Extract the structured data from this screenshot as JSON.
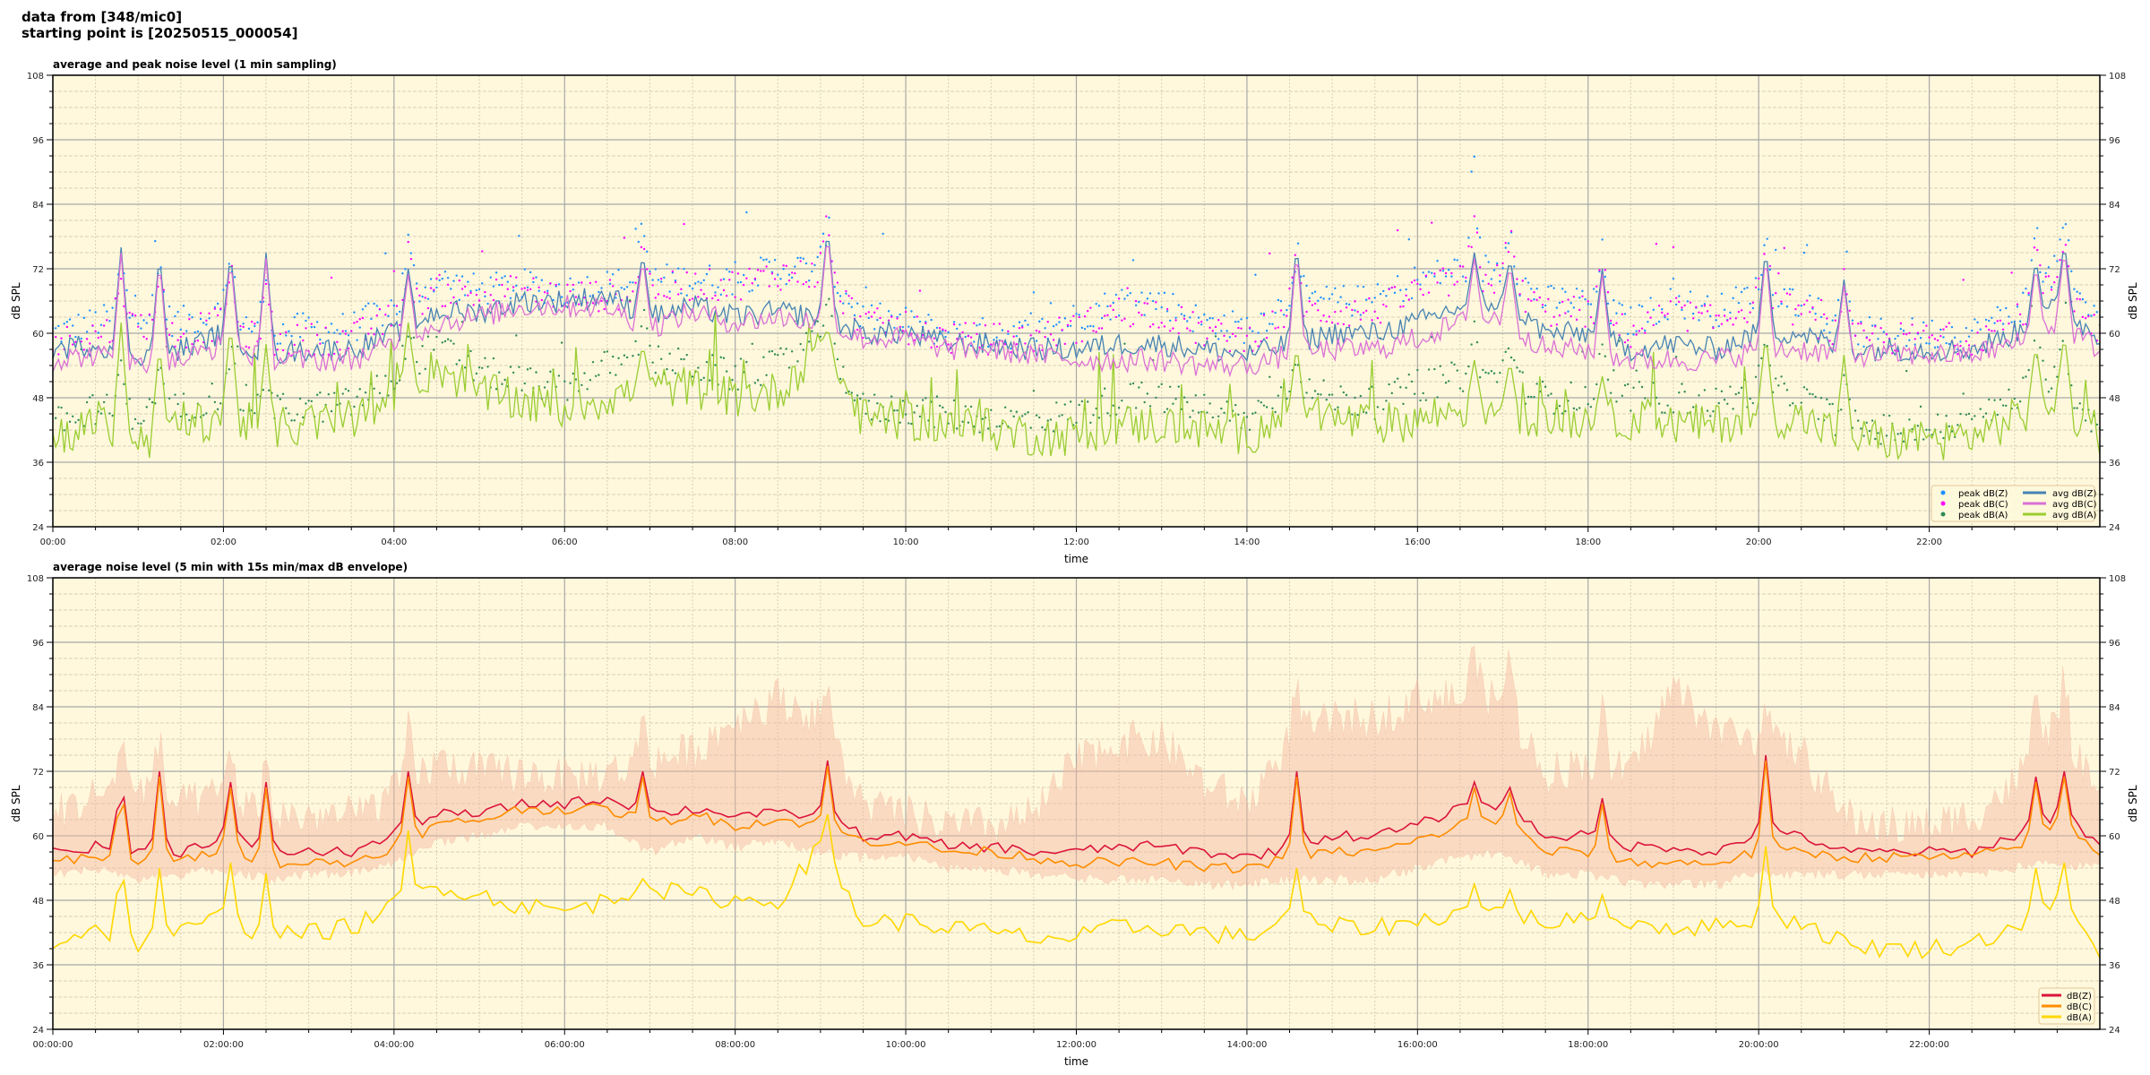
{
  "header": {
    "line1": "data from [348/mic0]",
    "line2": "starting point is [20250515_000054]"
  },
  "chart_data": [
    {
      "type": "line",
      "title": "average and peak noise level (1 min sampling)",
      "xlabel": "time",
      "ylabel": "dB SPL",
      "ylim": [
        24,
        108
      ],
      "yticks": [
        24,
        36,
        48,
        60,
        72,
        84,
        96,
        108
      ],
      "xlim_minutes": [
        0,
        1440
      ],
      "xticks": [
        "00:00",
        "02:00",
        "04:00",
        "06:00",
        "08:00",
        "10:00",
        "12:00",
        "14:00",
        "16:00",
        "18:00",
        "20:00",
        "22:00"
      ],
      "grid": true,
      "legend_placement": "bottom-right",
      "x_step_minutes": 30,
      "series": [
        {
          "name": "avg dB(Z)",
          "kind": "line",
          "color": "#4682b4",
          "values": [
            57,
            58,
            56,
            57,
            60,
            56,
            57,
            57,
            60,
            64,
            64,
            66,
            66,
            67,
            63,
            65,
            63,
            64,
            63,
            60,
            60,
            58,
            58,
            57,
            57,
            58,
            58,
            57,
            56,
            58,
            60,
            60,
            62,
            65,
            66,
            60,
            60,
            57,
            58,
            57,
            60,
            60,
            57,
            57,
            57,
            57,
            60,
            65,
            59
          ]
        },
        {
          "name": "avg dB(C)",
          "kind": "line",
          "color": "#da70d6",
          "values": [
            55,
            56,
            54,
            55,
            58,
            55,
            55,
            55,
            58,
            62,
            63,
            65,
            65,
            65,
            61,
            64,
            62,
            63,
            62,
            59,
            59,
            57,
            57,
            56,
            55,
            55,
            55,
            54,
            54,
            56,
            57,
            57,
            59,
            62,
            63,
            57,
            57,
            55,
            55,
            55,
            57,
            57,
            56,
            56,
            56,
            56,
            58,
            62,
            57
          ]
        },
        {
          "name": "avg dB(A)",
          "kind": "line",
          "color": "#9acd32",
          "values": [
            41,
            43,
            40,
            42,
            45,
            42,
            43,
            44,
            47,
            54,
            49,
            47,
            46,
            48,
            50,
            50,
            48,
            49,
            58,
            44,
            44,
            43,
            42,
            41,
            41,
            43,
            43,
            42,
            41,
            45,
            44,
            43,
            44,
            46,
            46,
            44,
            44,
            44,
            43,
            43,
            45,
            44,
            41,
            40,
            40,
            41,
            44,
            48,
            40
          ]
        },
        {
          "name": "peak dB(Z)",
          "kind": "scatter",
          "color": "#1e90ff",
          "values": [
            60,
            62,
            64,
            62,
            64,
            60,
            61,
            61,
            65,
            70,
            68,
            69,
            68,
            69,
            70,
            70,
            70,
            72,
            72,
            63,
            62,
            60,
            60,
            60,
            63,
            66,
            66,
            62,
            61,
            66,
            66,
            66,
            70,
            72,
            72,
            66,
            66,
            62,
            66,
            64,
            68,
            66,
            60,
            60,
            60,
            60,
            64,
            72,
            62
          ]
        },
        {
          "name": "peak dB(C)",
          "kind": "scatter",
          "color": "#ff00ff",
          "values": [
            58,
            60,
            62,
            60,
            62,
            58,
            59,
            59,
            63,
            68,
            67,
            68,
            67,
            67,
            68,
            69,
            69,
            71,
            71,
            62,
            61,
            59,
            59,
            59,
            61,
            64,
            64,
            60,
            59,
            64,
            64,
            64,
            68,
            70,
            70,
            64,
            64,
            60,
            64,
            62,
            66,
            64,
            59,
            59,
            59,
            59,
            62,
            70,
            60
          ]
        },
        {
          "name": "peak dB(A)",
          "kind": "scatter",
          "color": "#2e8b57",
          "values": [
            43,
            46,
            45,
            46,
            49,
            46,
            46,
            47,
            51,
            58,
            53,
            51,
            50,
            54,
            55,
            54,
            52,
            54,
            60,
            46,
            46,
            45,
            44,
            44,
            45,
            48,
            48,
            46,
            44,
            50,
            48,
            47,
            50,
            52,
            52,
            48,
            48,
            48,
            48,
            47,
            50,
            48,
            43,
            42,
            42,
            43,
            48,
            53,
            42
          ]
        }
      ],
      "spikes": [
        {
          "minute": 48,
          "z": 76,
          "a": 62
        },
        {
          "minute": 75,
          "z": 75,
          "a": 58
        },
        {
          "minute": 125,
          "z": 75,
          "a": 62
        },
        {
          "minute": 150,
          "z": 75,
          "a": 58
        },
        {
          "minute": 250,
          "z": 72,
          "a": 62
        },
        {
          "minute": 415,
          "z": 75,
          "a": 58
        },
        {
          "minute": 545,
          "z": 80,
          "a": 61
        },
        {
          "minute": 875,
          "z": 77,
          "a": 58
        },
        {
          "minute": 1000,
          "z": 75,
          "a": 55
        },
        {
          "minute": 1025,
          "z": 74,
          "a": 55
        },
        {
          "minute": 1090,
          "z": 72,
          "a": 52
        },
        {
          "minute": 1205,
          "z": 76,
          "a": 60
        },
        {
          "minute": 1260,
          "z": 70,
          "a": 56
        },
        {
          "minute": 1395,
          "z": 74,
          "a": 58
        },
        {
          "minute": 1415,
          "z": 77,
          "a": 60
        }
      ]
    },
    {
      "type": "line",
      "title": "average noise level (5 min with 15s min/max dB envelope)",
      "xlabel": "time",
      "ylabel": "dB SPL",
      "ylim": [
        24,
        108
      ],
      "yticks": [
        24,
        36,
        48,
        60,
        72,
        84,
        96,
        108
      ],
      "xlim_minutes": [
        0,
        1440
      ],
      "xticks": [
        "00:00:00",
        "02:00:00",
        "04:00:00",
        "06:00:00",
        "08:00:00",
        "10:00:00",
        "12:00:00",
        "14:00:00",
        "16:00:00",
        "18:00:00",
        "20:00:00",
        "22:00:00"
      ],
      "grid": true,
      "legend_placement": "bottom-right",
      "x_step_minutes": 30,
      "series": [
        {
          "name": "dB(Z)",
          "kind": "line",
          "color": "#dc143c",
          "values": [
            57,
            58,
            57,
            57,
            60,
            57,
            57,
            57,
            60,
            64,
            64,
            66,
            66,
            67,
            64,
            65,
            64,
            64,
            64,
            60,
            60,
            58,
            58,
            57,
            57,
            58,
            58,
            57,
            56,
            58,
            60,
            60,
            62,
            65,
            66,
            60,
            60,
            58,
            58,
            57,
            60,
            60,
            57,
            57,
            57,
            57,
            60,
            64,
            59
          ]
        },
        {
          "name": "dB(C)",
          "kind": "line",
          "color": "#ff8c00",
          "values": [
            55,
            56,
            55,
            55,
            58,
            55,
            55,
            55,
            58,
            62,
            63,
            65,
            65,
            65,
            62,
            64,
            62,
            63,
            62,
            59,
            59,
            57,
            57,
            56,
            55,
            55,
            55,
            54,
            54,
            56,
            57,
            57,
            59,
            62,
            63,
            57,
            57,
            55,
            55,
            55,
            57,
            57,
            56,
            56,
            56,
            56,
            58,
            62,
            57
          ]
        },
        {
          "name": "dB(A)",
          "kind": "line",
          "color": "#ffd700",
          "values": [
            40,
            43,
            40,
            42,
            45,
            41,
            42,
            43,
            47,
            51,
            49,
            47,
            46,
            48,
            50,
            49,
            48,
            48,
            58,
            44,
            44,
            43,
            42,
            41,
            41,
            43,
            43,
            42,
            41,
            45,
            43,
            43,
            44,
            46,
            46,
            44,
            44,
            44,
            43,
            43,
            45,
            44,
            40,
            39,
            39,
            40,
            43,
            48,
            38
          ]
        }
      ],
      "envelope": {
        "color": "#f4b8a0",
        "max": [
          62,
          66,
          68,
          64,
          66,
          62,
          62,
          62,
          66,
          72,
          70,
          70,
          69,
          70,
          72,
          74,
          80,
          84,
          80,
          64,
          62,
          60,
          60,
          62,
          72,
          76,
          76,
          68,
          64,
          76,
          80,
          80,
          84,
          84,
          84,
          70,
          72,
          70,
          86,
          78,
          76,
          74,
          62,
          60,
          60,
          62,
          68,
          80,
          64
        ],
        "min": [
          54,
          55,
          53,
          54,
          55,
          53,
          54,
          54,
          56,
          60,
          61,
          63,
          63,
          63,
          58,
          61,
          59,
          60,
          58,
          57,
          57,
          55,
          55,
          54,
          53,
          53,
          53,
          52,
          52,
          53,
          53,
          53,
          55,
          57,
          58,
          54,
          54,
          52,
          52,
          52,
          54,
          54,
          54,
          54,
          54,
          54,
          55,
          56,
          55
        ]
      },
      "spikes": [
        {
          "minute": 48,
          "z": 72,
          "a": 57
        },
        {
          "minute": 75,
          "z": 72,
          "a": 54
        },
        {
          "minute": 125,
          "z": 70,
          "a": 55
        },
        {
          "minute": 150,
          "z": 70,
          "a": 53
        },
        {
          "minute": 250,
          "z": 72,
          "a": 61
        },
        {
          "minute": 415,
          "z": 72,
          "a": 52
        },
        {
          "minute": 545,
          "z": 74,
          "a": 64
        },
        {
          "minute": 875,
          "z": 72,
          "a": 54
        },
        {
          "minute": 1000,
          "z": 70,
          "a": 51
        },
        {
          "minute": 1025,
          "z": 69,
          "a": 50
        },
        {
          "minute": 1090,
          "z": 67,
          "a": 49
        },
        {
          "minute": 1205,
          "z": 75,
          "a": 58
        },
        {
          "minute": 1395,
          "z": 71,
          "a": 54
        },
        {
          "minute": 1415,
          "z": 72,
          "a": 55
        }
      ]
    }
  ]
}
